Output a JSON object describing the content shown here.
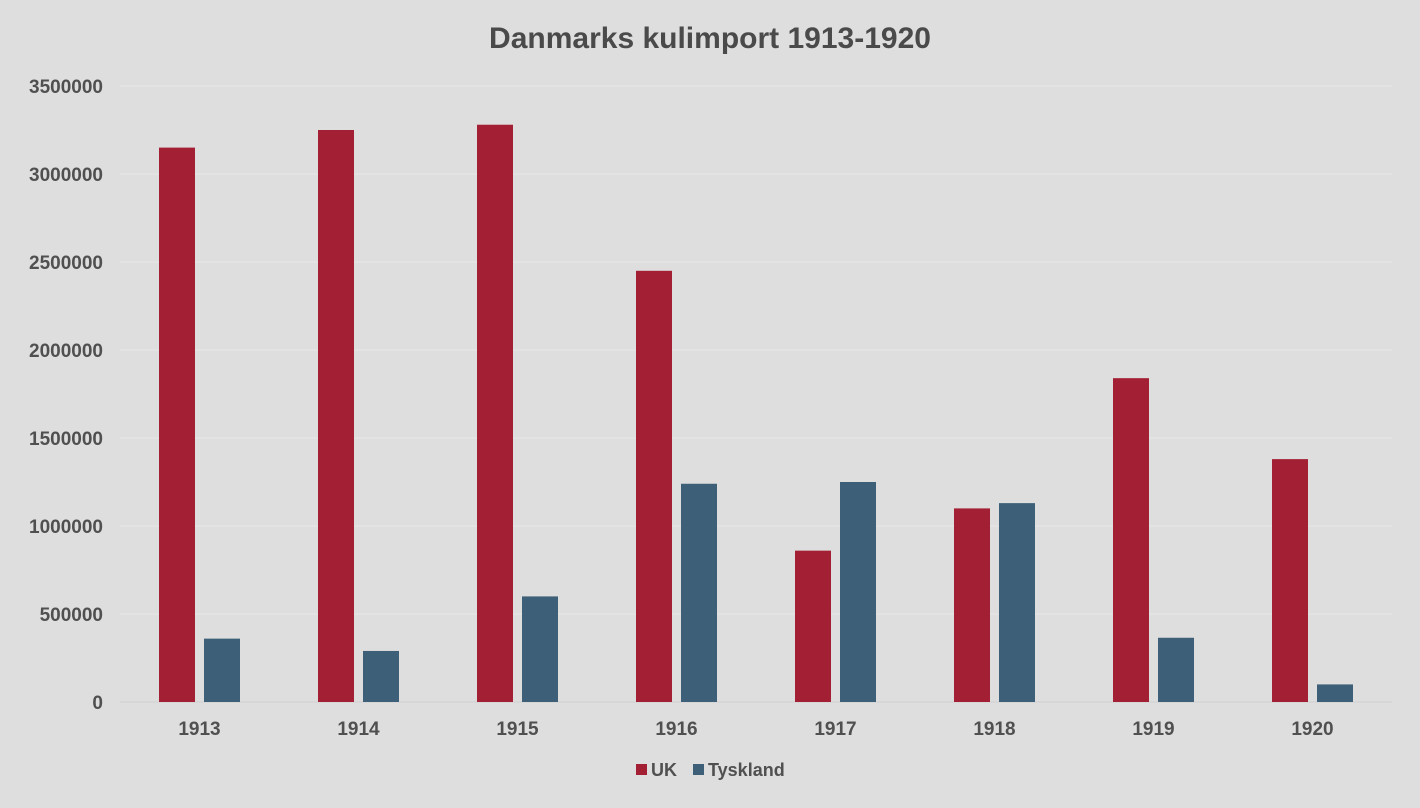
{
  "chart_data": {
    "type": "bar",
    "title": "Danmarks kulimport 1913-1920",
    "categories": [
      "1913",
      "1914",
      "1915",
      "1916",
      "1917",
      "1918",
      "1919",
      "1920"
    ],
    "series": [
      {
        "name": "UK",
        "color": "#a31f34",
        "values": [
          3150000,
          3250000,
          3280000,
          2450000,
          860000,
          1100000,
          1840000,
          1380000
        ]
      },
      {
        "name": "Tyskland",
        "color": "#3e5f78",
        "values": [
          360000,
          290000,
          600000,
          1240000,
          1250000,
          1130000,
          365000,
          100000
        ]
      }
    ],
    "ylim": [
      0,
      3500000
    ],
    "yticks": [
      0,
      500000,
      1000000,
      1500000,
      2000000,
      2500000,
      3000000,
      3500000
    ],
    "grid": true,
    "legend_position": "bottom"
  }
}
